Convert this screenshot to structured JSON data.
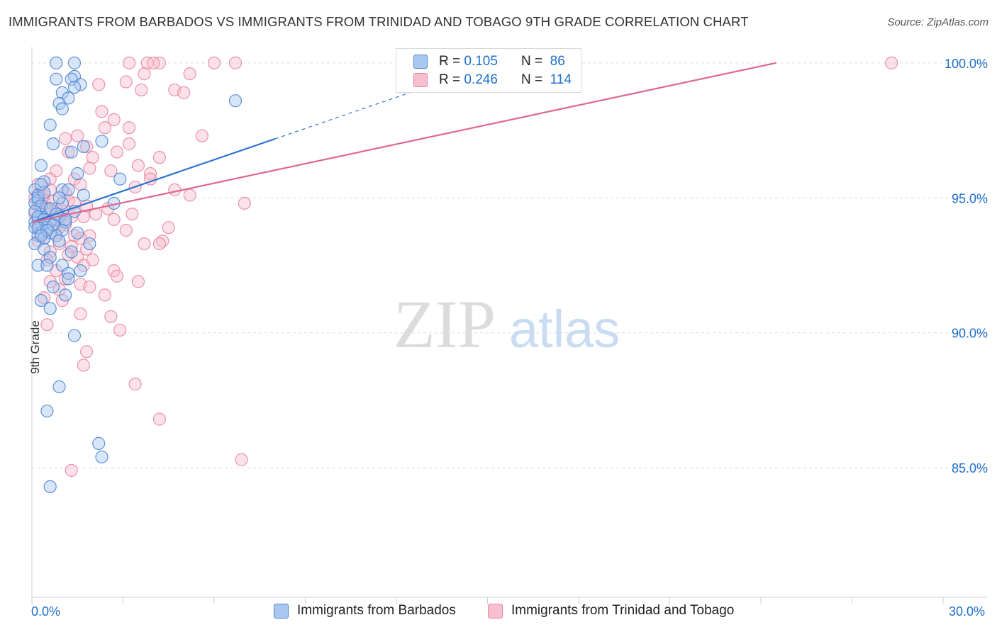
{
  "title": "IMMIGRANTS FROM BARBADOS VS IMMIGRANTS FROM TRINIDAD AND TOBAGO 9TH GRADE CORRELATION CHART",
  "source": "Source: ZipAtlas.com",
  "watermark": {
    "zip": "ZIP",
    "atlas": "atlas"
  },
  "legend": {
    "rows": [
      {
        "r_label": "R =",
        "r_value": "0.105",
        "n_label": "N =",
        "n_value": "86"
      },
      {
        "r_label": "R =",
        "r_value": "0.246",
        "n_label": "N =",
        "n_value": "114"
      }
    ]
  },
  "colors": {
    "barbados_fill": "#a9c8f0",
    "barbados_stroke": "#4f86d6",
    "barbados_line": "#2a72d0",
    "trinidad_fill": "#f7bfd0",
    "trinidad_stroke": "#e8879f",
    "trinidad_line": "#e06690",
    "axis_text": "#1f6fcc",
    "grid": "#dedede"
  },
  "chart_data": {
    "type": "scatter",
    "title": "IMMIGRANTS FROM BARBADOS VS IMMIGRANTS FROM TRINIDAD AND TOBAGO 9TH GRADE CORRELATION CHART",
    "xlabel": "",
    "ylabel": "9th Grade",
    "xlim": [
      0,
      30
    ],
    "ylim": [
      80.2,
      100.6
    ],
    "x_tick_labels": {
      "left": "0.0%",
      "right": "30.0%"
    },
    "y_ticks": [
      100,
      95,
      90,
      85
    ],
    "y_tick_labels": [
      "100.0%",
      "95.0%",
      "90.0%",
      "85.0%"
    ],
    "grid": true,
    "series": [
      {
        "name": "Immigrants from Barbados",
        "r": 0.105,
        "n": 86,
        "trend": {
          "x0": 0,
          "y0": 94.1,
          "x_solid_end": 8.0,
          "x1": 14.0,
          "y1": 99.5
        },
        "points": [
          [
            0.8,
            100
          ],
          [
            1.4,
            100
          ],
          [
            1.4,
            99.5
          ],
          [
            1.3,
            99.4
          ],
          [
            0.8,
            99.4
          ],
          [
            1.6,
            99.2
          ],
          [
            1.4,
            99.1
          ],
          [
            1.0,
            98.9
          ],
          [
            1.2,
            98.7
          ],
          [
            0.9,
            98.5
          ],
          [
            1.0,
            98.3
          ],
          [
            0.6,
            97.7
          ],
          [
            2.3,
            97.1
          ],
          [
            0.7,
            97.0
          ],
          [
            1.7,
            96.9
          ],
          [
            1.3,
            96.7
          ],
          [
            0.3,
            96.2
          ],
          [
            1.5,
            95.9
          ],
          [
            2.9,
            95.7
          ],
          [
            0.4,
            95.6
          ],
          [
            1.0,
            95.3
          ],
          [
            1.2,
            95.3
          ],
          [
            0.1,
            95.3
          ],
          [
            0.2,
            95.1
          ],
          [
            1.7,
            95.1
          ],
          [
            0.2,
            94.9
          ],
          [
            0.1,
            94.8
          ],
          [
            1.0,
            94.8
          ],
          [
            2.7,
            94.8
          ],
          [
            0.5,
            94.6
          ],
          [
            1.4,
            94.5
          ],
          [
            0.3,
            94.4
          ],
          [
            0.9,
            94.3
          ],
          [
            0.8,
            94.2
          ],
          [
            0.2,
            94.2
          ],
          [
            0.1,
            94.1
          ],
          [
            0.6,
            94.1
          ],
          [
            1.1,
            94.1
          ],
          [
            0.3,
            94.0
          ],
          [
            0.1,
            93.9
          ],
          [
            0.5,
            93.9
          ],
          [
            1.0,
            93.8
          ],
          [
            0.3,
            93.7
          ],
          [
            0.6,
            93.7
          ],
          [
            0.2,
            93.6
          ],
          [
            1.5,
            93.7
          ],
          [
            0.8,
            93.6
          ],
          [
            0.4,
            93.5
          ],
          [
            0.9,
            93.4
          ],
          [
            0.1,
            93.3
          ],
          [
            0.4,
            93.1
          ],
          [
            1.3,
            93.0
          ],
          [
            1.9,
            93.3
          ],
          [
            0.6,
            92.8
          ],
          [
            0.2,
            92.5
          ],
          [
            1.0,
            92.5
          ],
          [
            0.5,
            92.5
          ],
          [
            1.6,
            92.3
          ],
          [
            1.2,
            92.2
          ],
          [
            1.2,
            92.0
          ],
          [
            0.7,
            91.7
          ],
          [
            1.1,
            91.4
          ],
          [
            0.3,
            91.2
          ],
          [
            0.6,
            90.9
          ],
          [
            1.4,
            89.9
          ],
          [
            0.9,
            88.0
          ],
          [
            0.5,
            87.1
          ],
          [
            2.2,
            85.9
          ],
          [
            2.3,
            85.4
          ],
          [
            0.6,
            84.3
          ],
          [
            6.7,
            98.6
          ],
          [
            0.2,
            95.0
          ],
          [
            0.3,
            94.7
          ],
          [
            0.1,
            94.5
          ],
          [
            0.2,
            94.3
          ],
          [
            0.4,
            94.2
          ],
          [
            0.7,
            94.0
          ],
          [
            0.2,
            93.9
          ],
          [
            0.5,
            93.8
          ],
          [
            0.3,
            93.6
          ],
          [
            0.6,
            94.6
          ],
          [
            0.9,
            95.0
          ],
          [
            0.4,
            95.2
          ],
          [
            0.8,
            94.4
          ],
          [
            1.1,
            94.2
          ],
          [
            0.3,
            95.5
          ]
        ]
      },
      {
        "name": "Immigrants from Trinidad and Tobago",
        "r": 0.246,
        "n": 114,
        "trend": {
          "x0": 0,
          "y0": 94.1,
          "x1": 24.5,
          "y1": 100.0
        },
        "points": [
          [
            3.2,
            100
          ],
          [
            3.8,
            100
          ],
          [
            4.2,
            100
          ],
          [
            4.0,
            100
          ],
          [
            6.0,
            100
          ],
          [
            6.7,
            100
          ],
          [
            28.3,
            100
          ],
          [
            3.7,
            99.6
          ],
          [
            5.2,
            99.6
          ],
          [
            3.1,
            99.3
          ],
          [
            2.2,
            99.2
          ],
          [
            3.6,
            99.0
          ],
          [
            4.7,
            99.0
          ],
          [
            5.0,
            98.9
          ],
          [
            2.3,
            98.2
          ],
          [
            2.7,
            97.9
          ],
          [
            2.4,
            97.6
          ],
          [
            3.2,
            97.6
          ],
          [
            5.6,
            97.3
          ],
          [
            1.1,
            97.2
          ],
          [
            1.5,
            97.3
          ],
          [
            3.2,
            97.0
          ],
          [
            1.8,
            96.9
          ],
          [
            1.2,
            96.7
          ],
          [
            2.8,
            96.7
          ],
          [
            4.2,
            96.5
          ],
          [
            2.0,
            96.5
          ],
          [
            3.5,
            96.2
          ],
          [
            1.9,
            96.1
          ],
          [
            2.6,
            96.0
          ],
          [
            0.8,
            96.0
          ],
          [
            3.9,
            95.9
          ],
          [
            1.4,
            95.7
          ],
          [
            0.6,
            95.7
          ],
          [
            3.9,
            95.7
          ],
          [
            1.6,
            95.5
          ],
          [
            3.4,
            95.4
          ],
          [
            4.7,
            95.3
          ],
          [
            0.3,
            95.2
          ],
          [
            1.1,
            95.2
          ],
          [
            5.2,
            95.1
          ],
          [
            0.1,
            95.0
          ],
          [
            0.4,
            94.9
          ],
          [
            1.2,
            94.9
          ],
          [
            7.0,
            94.8
          ],
          [
            0.2,
            94.7
          ],
          [
            1.8,
            94.7
          ],
          [
            0.5,
            94.6
          ],
          [
            1.0,
            94.5
          ],
          [
            2.1,
            94.4
          ],
          [
            3.3,
            94.4
          ],
          [
            0.3,
            94.3
          ],
          [
            1.7,
            94.3
          ],
          [
            2.7,
            94.2
          ],
          [
            0.6,
            94.1
          ],
          [
            0.9,
            94.1
          ],
          [
            0.2,
            94.0
          ],
          [
            1.1,
            94.0
          ],
          [
            4.5,
            93.9
          ],
          [
            0.7,
            93.8
          ],
          [
            3.1,
            93.8
          ],
          [
            1.4,
            93.6
          ],
          [
            1.9,
            93.6
          ],
          [
            0.4,
            93.5
          ],
          [
            1.6,
            93.5
          ],
          [
            4.3,
            93.4
          ],
          [
            3.7,
            93.3
          ],
          [
            0.9,
            93.3
          ],
          [
            1.3,
            93.2
          ],
          [
            4.2,
            93.3
          ],
          [
            1.8,
            93.1
          ],
          [
            0.6,
            93.0
          ],
          [
            1.2,
            92.9
          ],
          [
            1.5,
            92.8
          ],
          [
            2.0,
            92.7
          ],
          [
            0.5,
            92.7
          ],
          [
            1.7,
            92.5
          ],
          [
            2.7,
            92.3
          ],
          [
            0.8,
            92.3
          ],
          [
            2.8,
            92.1
          ],
          [
            1.1,
            92.0
          ],
          [
            0.6,
            91.9
          ],
          [
            3.5,
            91.9
          ],
          [
            1.6,
            91.8
          ],
          [
            1.9,
            91.7
          ],
          [
            0.9,
            91.6
          ],
          [
            2.4,
            91.4
          ],
          [
            0.4,
            91.3
          ],
          [
            1.0,
            91.2
          ],
          [
            1.6,
            90.7
          ],
          [
            2.6,
            90.6
          ],
          [
            0.5,
            90.3
          ],
          [
            2.9,
            90.1
          ],
          [
            1.8,
            89.3
          ],
          [
            1.7,
            88.8
          ],
          [
            3.4,
            88.1
          ],
          [
            4.2,
            86.8
          ],
          [
            1.3,
            84.9
          ],
          [
            6.9,
            85.3
          ],
          [
            0.2,
            95.5
          ],
          [
            0.3,
            94.8
          ],
          [
            0.1,
            94.4
          ],
          [
            0.2,
            94.1
          ],
          [
            0.5,
            94.4
          ],
          [
            0.7,
            94.9
          ],
          [
            0.4,
            95.1
          ],
          [
            0.8,
            94.6
          ],
          [
            1.3,
            94.3
          ],
          [
            0.9,
            93.9
          ],
          [
            0.3,
            93.7
          ],
          [
            2.5,
            94.6
          ],
          [
            0.6,
            95.3
          ],
          [
            1.4,
            94.8
          ],
          [
            0.2,
            93.4
          ]
        ]
      }
    ]
  },
  "bottom_legend": [
    "Immigrants from Barbados",
    "Immigrants from Trinidad and Tobago"
  ]
}
